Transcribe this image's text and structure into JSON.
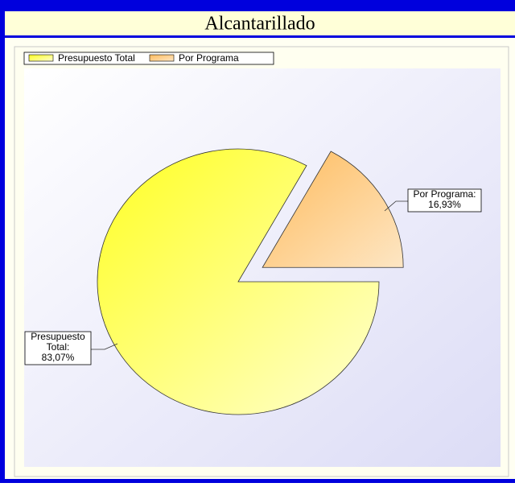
{
  "chart_data": {
    "type": "pie",
    "title": "Alcantarillado",
    "categories": [
      "Presupuesto Total",
      "Por Programa"
    ],
    "values": [
      83.07,
      16.93
    ],
    "value_labels": [
      "83,07%",
      "16,93%"
    ],
    "label_lines": [
      [
        "Presupuesto",
        "Total:"
      ],
      [
        "Por Programa:"
      ]
    ],
    "colors": [
      [
        "#ffff22",
        "#ffffd0"
      ],
      [
        "#ffbb5c",
        "#fde6c4"
      ]
    ],
    "legend": "top-left"
  }
}
